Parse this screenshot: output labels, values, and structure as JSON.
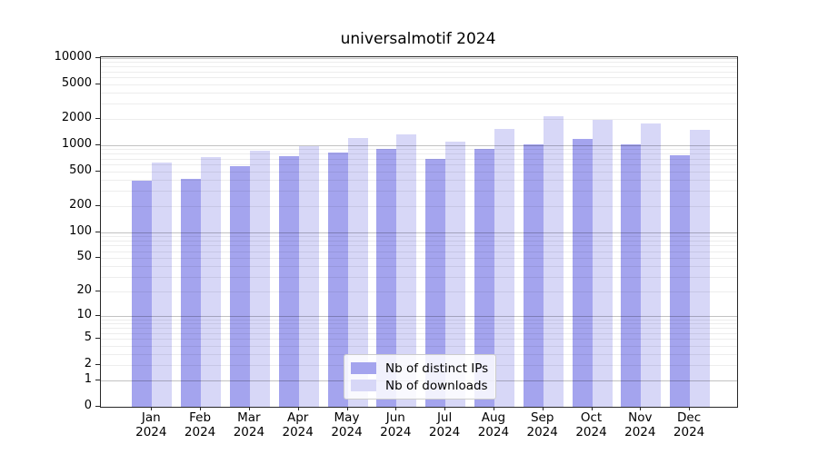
{
  "chart_data": {
    "type": "bar",
    "title": "universalmotif 2024",
    "categories": [
      "Jan",
      "Feb",
      "Mar",
      "Apr",
      "May",
      "Jun",
      "Jul",
      "Aug",
      "Sep",
      "Oct",
      "Nov",
      "Dec"
    ],
    "category_year": "2024",
    "series": [
      {
        "name": "Nb of distinct IPs",
        "color": "#a4a4ee",
        "values": [
          395,
          415,
          580,
          745,
          820,
          910,
          695,
          900,
          1030,
          1180,
          1030,
          765
        ]
      },
      {
        "name": "Nb of downloads",
        "color": "#d7d7f7",
        "values": [
          635,
          725,
          870,
          965,
          1210,
          1325,
          1110,
          1545,
          2150,
          1975,
          1780,
          1500
        ]
      }
    ],
    "xlabel": "",
    "ylabel": "",
    "y_scale": "log1p",
    "ylim": [
      0,
      10000
    ],
    "y_ticks": [
      0,
      1,
      2,
      5,
      10,
      20,
      50,
      100,
      200,
      500,
      1000,
      2000,
      5000,
      10000
    ],
    "grid": "horizontal, minor log gridlines",
    "legend_position": "inside bottom-center",
    "frame": "full box",
    "axis_color": "#262626",
    "background_color": "#ffffff"
  }
}
